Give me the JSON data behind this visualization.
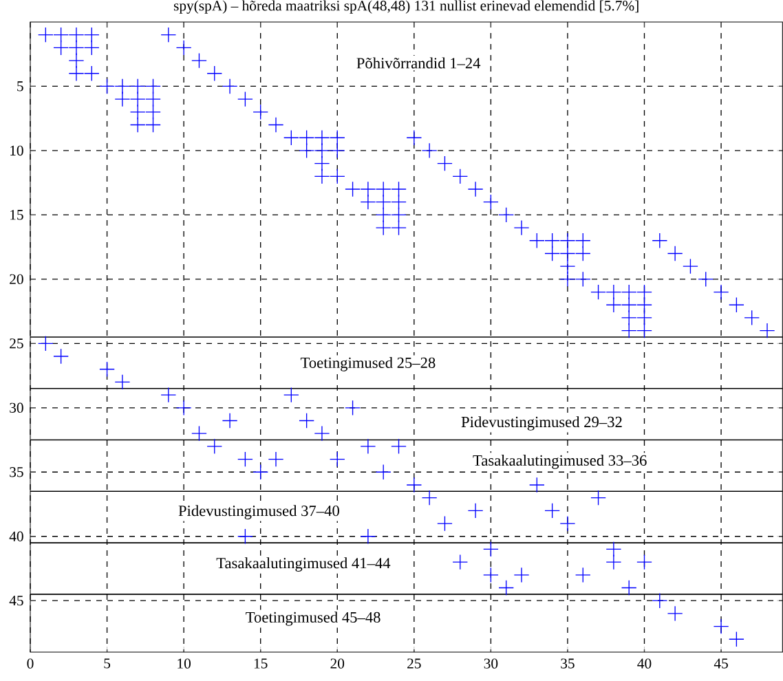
{
  "chart_data": {
    "type": "scatter",
    "title": "spy(spA) – hõreda maatriksi spA(48,48) 131  nullist erinevad elemendid [5.7%]",
    "xlim": [
      0,
      49
    ],
    "ylim": [
      49,
      0
    ],
    "xticks": [
      0,
      5,
      10,
      15,
      20,
      25,
      30,
      35,
      40,
      45
    ],
    "yticks": [
      5,
      10,
      15,
      20,
      25,
      30,
      35,
      40,
      45
    ],
    "grid": true,
    "marker": "cross",
    "series": [
      {
        "color": "#0000ff",
        "x": [
          1,
          2,
          3,
          4,
          9,
          2,
          3,
          4,
          10,
          3,
          11,
          3,
          4,
          12,
          5,
          6,
          7,
          8,
          13,
          6,
          7,
          8,
          14,
          7,
          8,
          15,
          7,
          8,
          16,
          17,
          18,
          19,
          20,
          25,
          18,
          19,
          20,
          26,
          19,
          27,
          19,
          20,
          28,
          21,
          22,
          23,
          24,
          29,
          22,
          23,
          24,
          30,
          23,
          24,
          31,
          23,
          24,
          32,
          33,
          34,
          35,
          36,
          41,
          34,
          35,
          36,
          42,
          35,
          43,
          35,
          36,
          44,
          37,
          38,
          39,
          40,
          45,
          38,
          39,
          40,
          46,
          39,
          40,
          47,
          39,
          40,
          48,
          1,
          2,
          5,
          6,
          9,
          17,
          10,
          21,
          13,
          18,
          11,
          19,
          12,
          22,
          24,
          14,
          16,
          20,
          15,
          23,
          25,
          33,
          26,
          37,
          29,
          34,
          27,
          35,
          14,
          22,
          30,
          38,
          28,
          38,
          40,
          30,
          32,
          36,
          31,
          39,
          41,
          42,
          45,
          46
        ],
        "values": [
          1,
          1,
          1,
          1,
          1,
          2,
          2,
          2,
          2,
          3,
          3,
          4,
          4,
          4,
          5,
          5,
          5,
          5,
          5,
          6,
          6,
          6,
          6,
          7,
          7,
          7,
          8,
          8,
          8,
          9,
          9,
          9,
          9,
          9,
          10,
          10,
          10,
          10,
          11,
          11,
          12,
          12,
          12,
          13,
          13,
          13,
          13,
          13,
          14,
          14,
          14,
          14,
          15,
          15,
          15,
          16,
          16,
          16,
          17,
          17,
          17,
          17,
          17,
          18,
          18,
          18,
          18,
          19,
          19,
          20,
          20,
          20,
          21,
          21,
          21,
          21,
          21,
          22,
          22,
          22,
          22,
          23,
          23,
          23,
          24,
          24,
          24,
          25,
          26,
          27,
          28,
          29,
          29,
          30,
          30,
          31,
          31,
          32,
          32,
          33,
          33,
          33,
          34,
          34,
          34,
          35,
          35,
          36,
          36,
          37,
          37,
          38,
          38,
          39,
          39,
          40,
          40,
          41,
          41,
          42,
          42,
          42,
          43,
          43,
          43,
          44,
          44,
          45,
          46,
          47,
          48
        ]
      }
    ],
    "ref_lines": [
      {
        "axis": "y",
        "value": 24.5,
        "color": "#000000",
        "line_style": "solid"
      },
      {
        "axis": "y",
        "value": 28.5,
        "color": "#000000",
        "line_style": "solid"
      },
      {
        "axis": "y",
        "value": 32.5,
        "color": "#000000",
        "line_style": "solid"
      },
      {
        "axis": "y",
        "value": 36.5,
        "color": "#000000",
        "line_style": "solid"
      },
      {
        "axis": "y",
        "value": 40.5,
        "color": "#000000",
        "line_style": "solid"
      },
      {
        "axis": "y",
        "value": 44.5,
        "color": "#000000",
        "line_style": "solid"
      }
    ],
    "annotations": [
      "Põhivõrrandid 1–24",
      "Toetingimused 25–28",
      "Pidevustingimused 29–32",
      "Tasakaalutingimused 33–36",
      "Pidevustingimused 37–40",
      "Tasakaalutingimused 41–44",
      "Toetingimused 45–48"
    ]
  }
}
